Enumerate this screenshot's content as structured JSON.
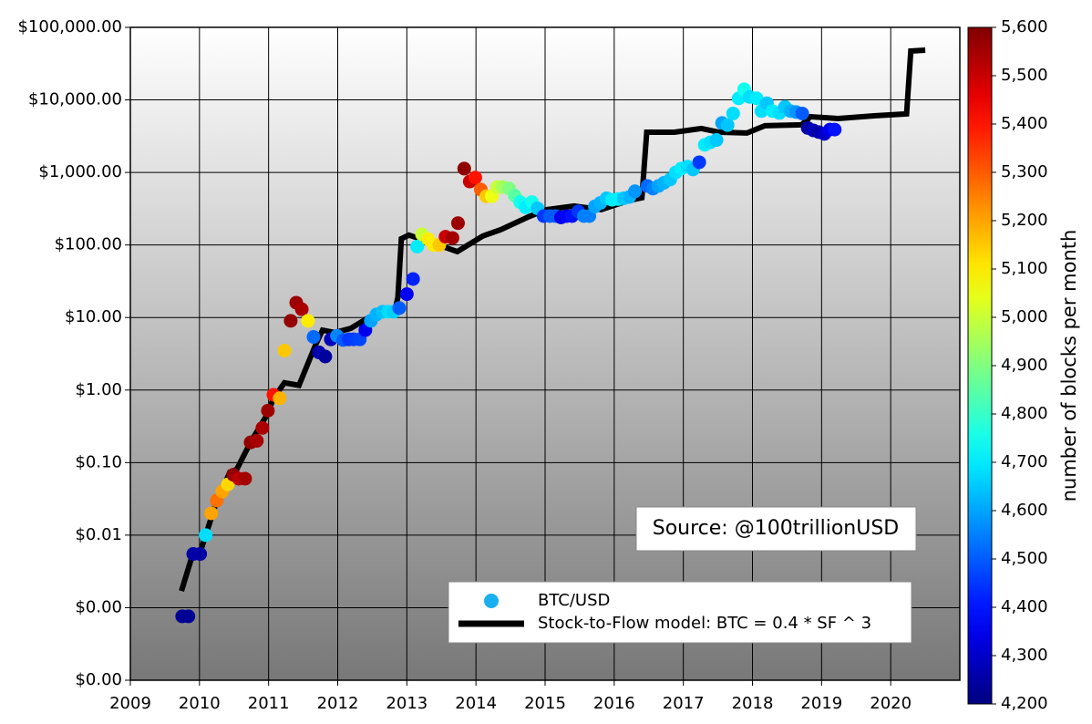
{
  "chart_data": {
    "type": "scatter",
    "log_y": true,
    "grid": true,
    "legend": "lower right",
    "annotation": "Source: @100trillionUSD",
    "xlim": [
      2009,
      2021
    ],
    "xticks": [
      2009,
      2010,
      2011,
      2012,
      2013,
      2014,
      2015,
      2016,
      2017,
      2018,
      2019,
      2020
    ],
    "ylim": [
      0.0001,
      100000
    ],
    "yticks": [
      {
        "value": 0.0001,
        "label": "$0.00"
      },
      {
        "value": 0.001,
        "label": "$0.00"
      },
      {
        "value": 0.01,
        "label": "$0.01"
      },
      {
        "value": 0.1,
        "label": "$0.10"
      },
      {
        "value": 1,
        "label": "$1.00"
      },
      {
        "value": 10,
        "label": "$10.00"
      },
      {
        "value": 100,
        "label": "$100.00"
      },
      {
        "value": 1000,
        "label": "$1,000.00"
      },
      {
        "value": 10000,
        "label": "$10,000.00"
      },
      {
        "value": 100000,
        "label": "$100,000.00"
      }
    ],
    "colorbar": {
      "label": "number of blocks per month",
      "colormap": "jet",
      "lim": [
        4200,
        5600
      ],
      "ticks": [
        {
          "value": 4200,
          "label": "4,200"
        },
        {
          "value": 4300,
          "label": "4,300"
        },
        {
          "value": 4400,
          "label": "4,400"
        },
        {
          "value": 4500,
          "label": "4,500"
        },
        {
          "value": 4600,
          "label": "4,600"
        },
        {
          "value": 4700,
          "label": "4,700"
        },
        {
          "value": 4800,
          "label": "4,800"
        },
        {
          "value": 4900,
          "label": "4,900"
        },
        {
          "value": 5000,
          "label": "5,000"
        },
        {
          "value": 5100,
          "label": "5,100"
        },
        {
          "value": 5200,
          "label": "5,200"
        },
        {
          "value": 5300,
          "label": "5,300"
        },
        {
          "value": 5400,
          "label": "5,400"
        },
        {
          "value": 5500,
          "label": "5,500"
        },
        {
          "value": 5600,
          "label": "5,600"
        }
      ]
    },
    "series": [
      {
        "name": "BTC/USD",
        "type": "scatter",
        "color": "#1aaff0",
        "x": [
          2009.75,
          2009.84,
          2009.91,
          2010.01,
          2010.09,
          2010.17,
          2010.25,
          2010.33,
          2010.41,
          2010.49,
          2010.57,
          2010.66,
          2010.74,
          2010.83,
          2010.91,
          2010.99,
          2011.07,
          2011.16,
          2011.23,
          2011.32,
          2011.4,
          2011.48,
          2011.57,
          2011.65,
          2011.73,
          2011.82,
          2011.9,
          2011.99,
          2012.08,
          2012.16,
          2012.23,
          2012.32,
          2012.4,
          2012.48,
          2012.56,
          2012.65,
          2012.73,
          2012.81,
          2012.89,
          2013.0,
          2013.09,
          2013.15,
          2013.22,
          2013.31,
          2013.39,
          2013.47,
          2013.56,
          2013.66,
          2013.74,
          2013.83,
          2013.91,
          2013.99,
          2014.07,
          2014.15,
          2014.23,
          2014.31,
          2014.39,
          2014.48,
          2014.56,
          2014.64,
          2014.72,
          2014.81,
          2014.89,
          2014.98,
          2015.07,
          2015.15,
          2015.23,
          2015.31,
          2015.39,
          2015.48,
          2015.56,
          2015.64,
          2015.72,
          2015.8,
          2015.89,
          2015.97,
          2016.06,
          2016.14,
          2016.22,
          2016.3,
          2016.48,
          2016.56,
          2016.64,
          2016.72,
          2016.81,
          2016.89,
          2016.97,
          2017.06,
          2017.14,
          2017.23,
          2017.31,
          2017.39,
          2017.48,
          2017.56,
          2017.64,
          2017.72,
          2017.8,
          2017.88,
          2017.96,
          2018.06,
          2018.13,
          2018.21,
          2018.29,
          2018.39,
          2018.47,
          2018.55,
          2018.63,
          2018.72,
          2018.8,
          2018.88,
          2018.96,
          2019.04,
          2019.12,
          2019.19
        ],
        "values": [
          0.00076,
          0.00076,
          0.0055,
          0.0055,
          0.01,
          0.02,
          0.03,
          0.04,
          0.05,
          0.068,
          0.06,
          0.06,
          0.19,
          0.2,
          0.3,
          0.52,
          0.86,
          0.77,
          3.5,
          9,
          16,
          13,
          9,
          5.4,
          3.3,
          2.9,
          5,
          5.6,
          4.9,
          5,
          5,
          5,
          6.7,
          9,
          11,
          12,
          12,
          12,
          13.5,
          21,
          34,
          95,
          140,
          120,
          100,
          100,
          130,
          125,
          200,
          1130,
          750,
          850,
          580,
          470,
          470,
          630,
          630,
          600,
          480,
          390,
          330,
          390,
          320,
          250,
          250,
          250,
          240,
          250,
          250,
          290,
          250,
          250,
          340,
          380,
          440,
          420,
          430,
          440,
          460,
          550,
          650,
          600,
          650,
          720,
          800,
          1000,
          1130,
          1200,
          1100,
          1380,
          2400,
          2600,
          2800,
          4800,
          4500,
          6500,
          10500,
          14000,
          11000,
          10500,
          7000,
          9000,
          7000,
          6600,
          8000,
          7000,
          6800,
          6500,
          4100,
          3800,
          3600,
          3400,
          3900,
          3900
        ],
        "color_values": [
          4230,
          4230,
          4250,
          4250,
          4680,
          5200,
          5270,
          5200,
          5130,
          5570,
          5520,
          5550,
          5570,
          5550,
          5540,
          5560,
          5400,
          5180,
          5150,
          5570,
          5560,
          5540,
          5100,
          4520,
          4270,
          4240,
          4280,
          4560,
          4500,
          4450,
          4460,
          4470,
          4350,
          4600,
          4620,
          4640,
          4680,
          4660,
          4500,
          4360,
          4420,
          4700,
          5000,
          5100,
          5100,
          5150,
          5500,
          5550,
          5560,
          5580,
          5500,
          5400,
          5300,
          5150,
          5050,
          5000,
          4950,
          4900,
          4850,
          4750,
          4700,
          4750,
          4650,
          4450,
          4500,
          4500,
          4350,
          4380,
          4400,
          4450,
          4550,
          4550,
          4600,
          4620,
          4650,
          4700,
          4700,
          4650,
          4620,
          4580,
          4520,
          4550,
          4600,
          4620,
          4650,
          4680,
          4700,
          4680,
          4650,
          4450,
          4700,
          4680,
          4650,
          4600,
          4650,
          4680,
          4700,
          4750,
          4680,
          4700,
          4680,
          4650,
          4700,
          4680,
          4650,
          4620,
          4580,
          4500,
          4250,
          4280,
          4260,
          4300,
          4350,
          4400
        ]
      },
      {
        "name": "Stock-to-Flow model: BTC = 0.4 * SF ^ 3",
        "type": "line",
        "color": "#000000",
        "x": [
          2009.74,
          2009.91,
          2010.01,
          2010.23,
          2010.44,
          2010.54,
          2010.75,
          2010.98,
          2011.07,
          2011.23,
          2011.44,
          2011.67,
          2011.78,
          2011.96,
          2012.19,
          2012.45,
          2012.83,
          2012.87,
          2012.92,
          2013.03,
          2013.31,
          2013.73,
          2014.1,
          2014.36,
          2014.76,
          2015.02,
          2015.42,
          2015.81,
          2016.21,
          2016.4,
          2016.47,
          2016.87,
          2017.26,
          2017.52,
          2017.92,
          2018.18,
          2018.71,
          2018.84,
          2019.24,
          2019.76,
          2020.23,
          2020.29,
          2020.5
        ],
        "values": [
          0.0017,
          0.0058,
          0.0058,
          0.026,
          0.074,
          0.081,
          0.2,
          0.46,
          0.77,
          1.26,
          1.16,
          4,
          6.7,
          6.2,
          7.1,
          10,
          12.8,
          19,
          122,
          137,
          112,
          81,
          133,
          163,
          244,
          307,
          345,
          307,
          410,
          448,
          3590,
          3590,
          4040,
          3590,
          3490,
          4400,
          4530,
          5870,
          5540,
          6040,
          6410,
          47100,
          48500
        ]
      }
    ]
  }
}
